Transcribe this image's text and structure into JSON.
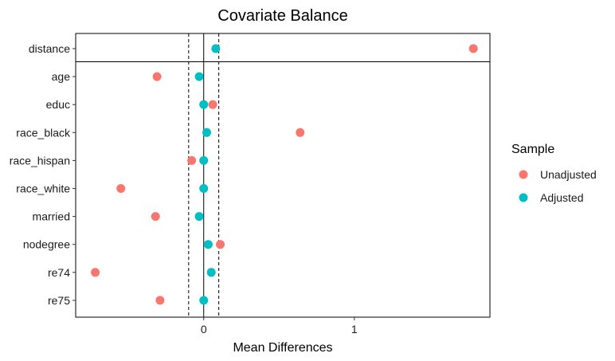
{
  "chart_data": {
    "type": "scatter",
    "title": "Covariate Balance",
    "xlabel": "Mean Differences",
    "ylabel": "",
    "xlim": [
      -0.85,
      1.9
    ],
    "x_ticks": [
      0,
      1
    ],
    "x_tick_labels": [
      "0",
      "1"
    ],
    "threshold_lines": [
      -0.1,
      0.1
    ],
    "zero_line": 0,
    "categories": [
      "distance",
      "age",
      "educ",
      "race_black",
      "race_hispan",
      "race_white",
      "married",
      "nodegree",
      "re74",
      "re75"
    ],
    "separator_after": "distance",
    "legend": {
      "title": "Sample",
      "position": "right"
    },
    "series": [
      {
        "name": "Unadjusted",
        "color": "#F8766D",
        "values": [
          1.79,
          -0.31,
          0.06,
          0.64,
          -0.08,
          -0.55,
          -0.32,
          0.11,
          -0.72,
          -0.29
        ]
      },
      {
        "name": "Adjusted",
        "color": "#00BFC4",
        "values": [
          0.08,
          -0.03,
          0.0,
          0.02,
          0.0,
          0.0,
          -0.03,
          0.03,
          0.05,
          0.0
        ]
      }
    ]
  }
}
